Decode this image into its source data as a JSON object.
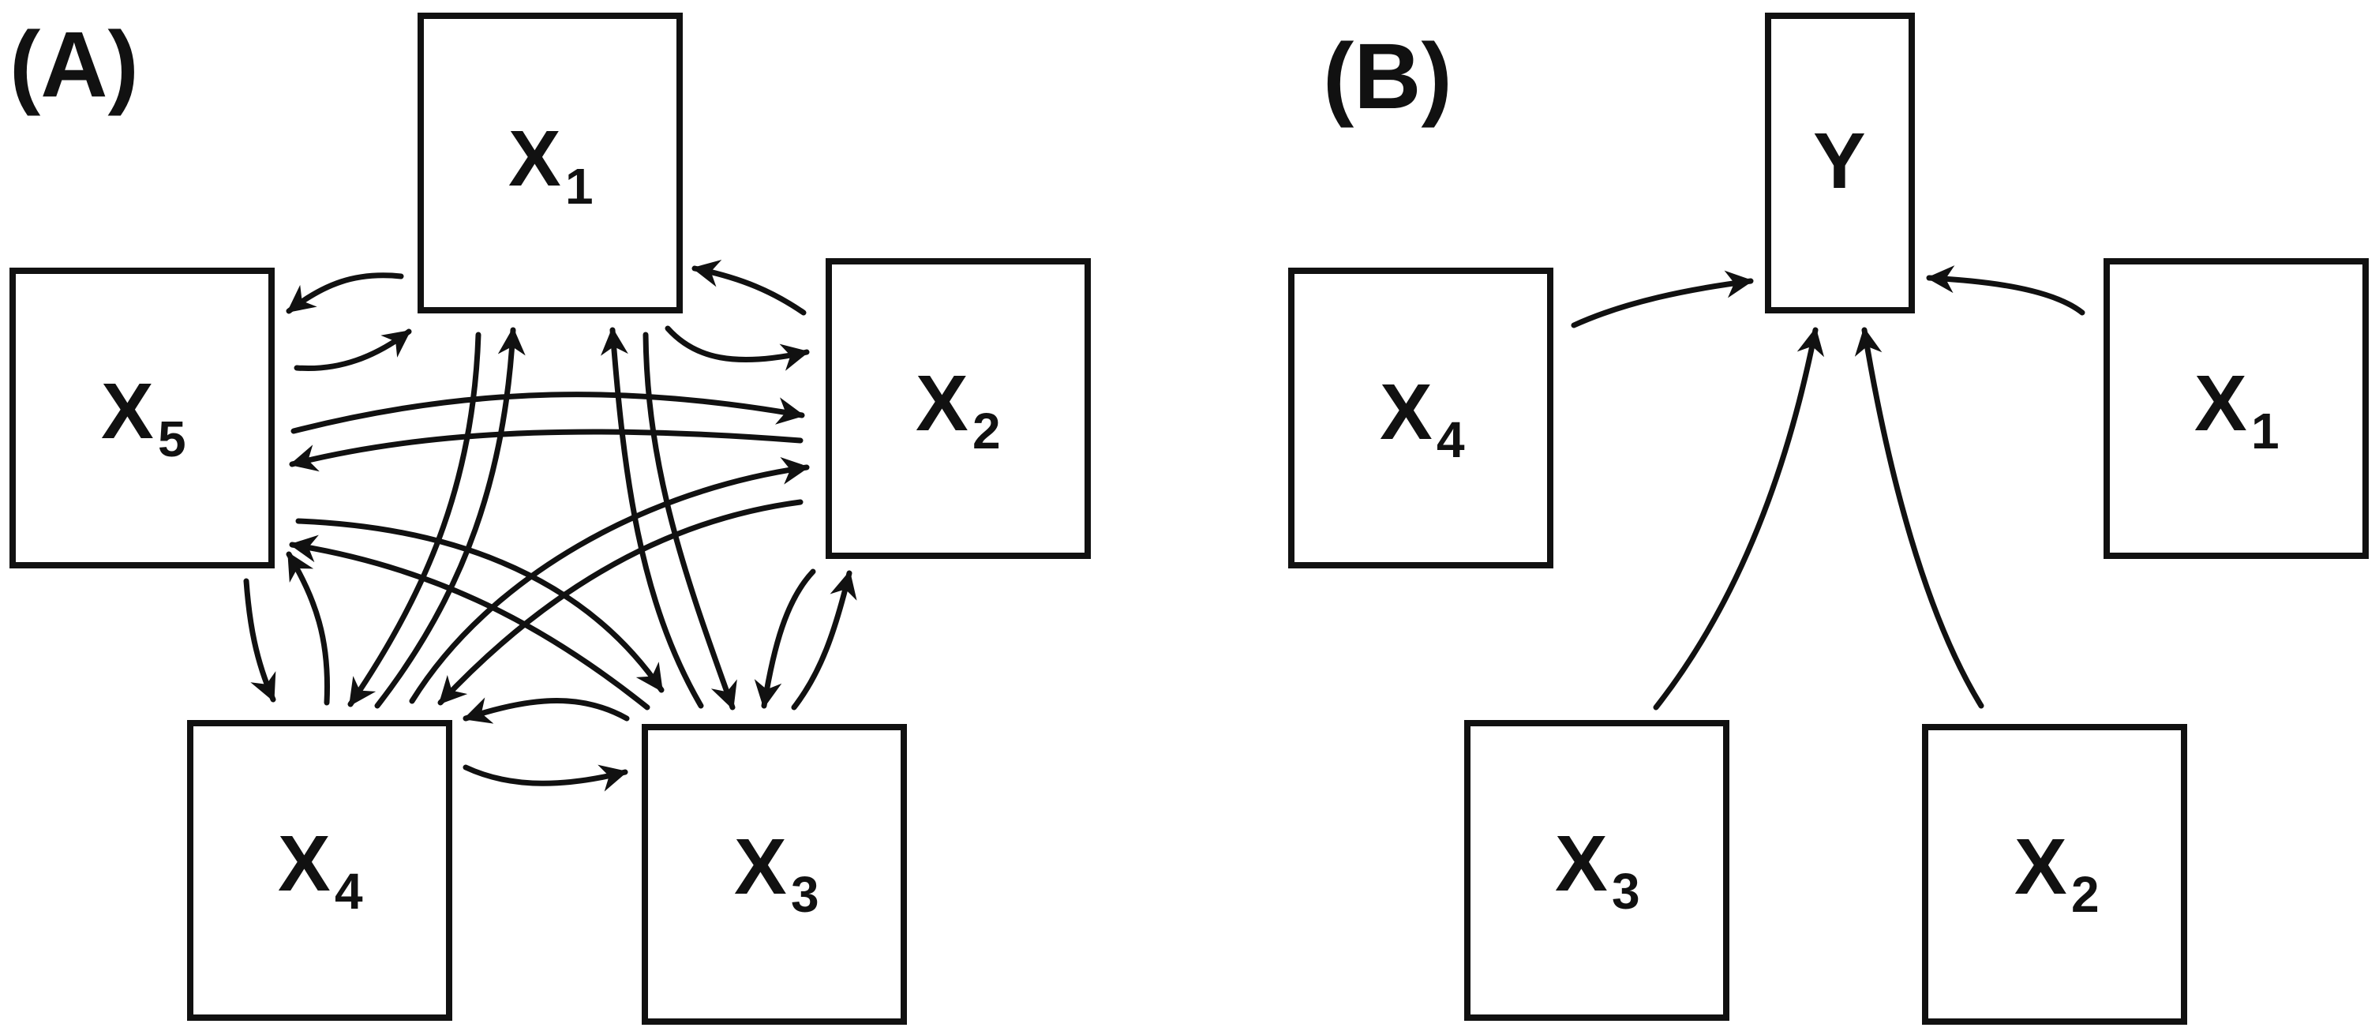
{
  "panels": [
    {
      "label": "(A)",
      "nodes": [
        {
          "id": "A-X1",
          "main": "X",
          "sub": "1"
        },
        {
          "id": "A-X2",
          "main": "X",
          "sub": "2"
        },
        {
          "id": "A-X3",
          "main": "X",
          "sub": "3"
        },
        {
          "id": "A-X4",
          "main": "X",
          "sub": "4"
        },
        {
          "id": "A-X5",
          "main": "X",
          "sub": "5"
        }
      ],
      "edges": [
        {
          "from": "A-X1",
          "to": "A-X5"
        },
        {
          "from": "A-X5",
          "to": "A-X1"
        },
        {
          "from": "A-X2",
          "to": "A-X1"
        },
        {
          "from": "A-X1",
          "to": "A-X2"
        },
        {
          "from": "A-X5",
          "to": "A-X2"
        },
        {
          "from": "A-X2",
          "to": "A-X5"
        },
        {
          "from": "A-X5",
          "to": "A-X4"
        },
        {
          "from": "A-X4",
          "to": "A-X5"
        },
        {
          "from": "A-X5",
          "to": "A-X3"
        },
        {
          "from": "A-X3",
          "to": "A-X5"
        },
        {
          "from": "A-X1",
          "to": "A-X4"
        },
        {
          "from": "A-X4",
          "to": "A-X1"
        },
        {
          "from": "A-X1",
          "to": "A-X3"
        },
        {
          "from": "A-X3",
          "to": "A-X1"
        },
        {
          "from": "A-X4",
          "to": "A-X2"
        },
        {
          "from": "A-X2",
          "to": "A-X4"
        },
        {
          "from": "A-X2",
          "to": "A-X3"
        },
        {
          "from": "A-X3",
          "to": "A-X2"
        },
        {
          "from": "A-X3",
          "to": "A-X4"
        },
        {
          "from": "A-X4",
          "to": "A-X3"
        }
      ]
    },
    {
      "label": "(B)",
      "nodes": [
        {
          "id": "B-Y",
          "main": "Y",
          "sub": ""
        },
        {
          "id": "B-X4",
          "main": "X",
          "sub": "4"
        },
        {
          "id": "B-X1",
          "main": "X",
          "sub": "1"
        },
        {
          "id": "B-X3",
          "main": "X",
          "sub": "3"
        },
        {
          "id": "B-X2",
          "main": "X",
          "sub": "2"
        }
      ],
      "edges": [
        {
          "from": "B-X4",
          "to": "B-Y"
        },
        {
          "from": "B-X1",
          "to": "B-Y"
        },
        {
          "from": "B-X3",
          "to": "B-Y"
        },
        {
          "from": "B-X2",
          "to": "B-Y"
        }
      ]
    }
  ],
  "colors": {
    "stroke": "#111111",
    "background": "#ffffff"
  }
}
